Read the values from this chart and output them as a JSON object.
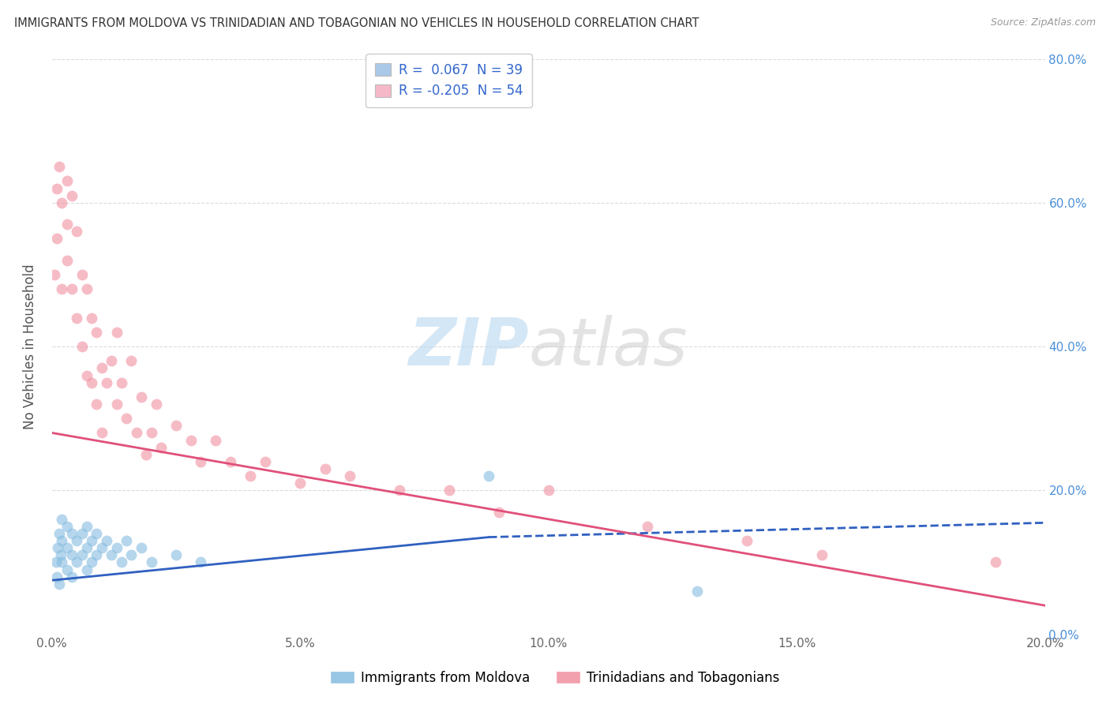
{
  "title": "IMMIGRANTS FROM MOLDOVA VS TRINIDADIAN AND TOBAGONIAN NO VEHICLES IN HOUSEHOLD CORRELATION CHART",
  "source": "Source: ZipAtlas.com",
  "ylabel": "No Vehicles in Household",
  "xlim": [
    0.0,
    0.2
  ],
  "ylim": [
    0.0,
    0.8
  ],
  "xtick_vals": [
    0.0,
    0.05,
    0.1,
    0.15,
    0.2
  ],
  "xtick_labels": [
    "0.0%",
    "5.0%",
    "10.0%",
    "15.0%",
    "20.0%"
  ],
  "ytick_vals": [
    0.0,
    0.2,
    0.4,
    0.6,
    0.8
  ],
  "ytick_labels_right": [
    "0.0%",
    "20.0%",
    "40.0%",
    "60.0%",
    "80.0%"
  ],
  "watermark_text": "ZIP",
  "watermark_text2": "atlas",
  "legend_entries": [
    {
      "label": "R =  0.067  N = 39",
      "color": "#aac8e8"
    },
    {
      "label": "R = -0.205  N = 54",
      "color": "#f5b8c8"
    }
  ],
  "scatter_moldova": {
    "x": [
      0.0008,
      0.001,
      0.0012,
      0.0015,
      0.0015,
      0.0018,
      0.002,
      0.002,
      0.002,
      0.003,
      0.003,
      0.003,
      0.004,
      0.004,
      0.004,
      0.005,
      0.005,
      0.006,
      0.006,
      0.007,
      0.007,
      0.007,
      0.008,
      0.008,
      0.009,
      0.009,
      0.01,
      0.011,
      0.012,
      0.013,
      0.014,
      0.015,
      0.016,
      0.018,
      0.02,
      0.025,
      0.03,
      0.088,
      0.13
    ],
    "y": [
      0.1,
      0.08,
      0.12,
      0.14,
      0.07,
      0.11,
      0.16,
      0.13,
      0.1,
      0.15,
      0.12,
      0.09,
      0.14,
      0.11,
      0.08,
      0.13,
      0.1,
      0.14,
      0.11,
      0.15,
      0.12,
      0.09,
      0.13,
      0.1,
      0.14,
      0.11,
      0.12,
      0.13,
      0.11,
      0.12,
      0.1,
      0.13,
      0.11,
      0.12,
      0.1,
      0.11,
      0.1,
      0.22,
      0.06
    ],
    "color": "#85bce0",
    "alpha": 0.6,
    "size": 100
  },
  "scatter_trinidad": {
    "x": [
      0.0005,
      0.001,
      0.001,
      0.0015,
      0.002,
      0.002,
      0.003,
      0.003,
      0.003,
      0.004,
      0.004,
      0.005,
      0.005,
      0.006,
      0.006,
      0.007,
      0.007,
      0.008,
      0.008,
      0.009,
      0.009,
      0.01,
      0.01,
      0.011,
      0.012,
      0.013,
      0.013,
      0.014,
      0.015,
      0.016,
      0.017,
      0.018,
      0.019,
      0.02,
      0.021,
      0.022,
      0.025,
      0.028,
      0.03,
      0.033,
      0.036,
      0.04,
      0.043,
      0.05,
      0.055,
      0.06,
      0.07,
      0.08,
      0.09,
      0.1,
      0.12,
      0.14,
      0.155,
      0.19
    ],
    "y": [
      0.5,
      0.62,
      0.55,
      0.65,
      0.6,
      0.48,
      0.63,
      0.57,
      0.52,
      0.61,
      0.48,
      0.56,
      0.44,
      0.5,
      0.4,
      0.48,
      0.36,
      0.44,
      0.35,
      0.42,
      0.32,
      0.37,
      0.28,
      0.35,
      0.38,
      0.32,
      0.42,
      0.35,
      0.3,
      0.38,
      0.28,
      0.33,
      0.25,
      0.28,
      0.32,
      0.26,
      0.29,
      0.27,
      0.24,
      0.27,
      0.24,
      0.22,
      0.24,
      0.21,
      0.23,
      0.22,
      0.2,
      0.2,
      0.17,
      0.2,
      0.15,
      0.13,
      0.11,
      0.1
    ],
    "color": "#f090a0",
    "alpha": 0.6,
    "size": 100
  },
  "trendline_moldova_solid": {
    "x": [
      0.0,
      0.088
    ],
    "y": [
      0.075,
      0.135
    ],
    "color": "#3060c0",
    "linewidth": 2.0
  },
  "trendline_moldova_dashed": {
    "x": [
      0.088,
      0.2
    ],
    "y": [
      0.135,
      0.155
    ],
    "color": "#3060c0",
    "linewidth": 2.0
  },
  "trendline_trinidad": {
    "x": [
      0.0,
      0.2
    ],
    "y": [
      0.28,
      0.04
    ],
    "color": "#e0507a",
    "linewidth": 2.0
  },
  "grid_color": "#cccccc",
  "grid_alpha": 0.7,
  "background_color": "#ffffff",
  "legend_labels_bottom": [
    "Immigrants from Moldova",
    "Trinidadians and Tobagonians"
  ],
  "legend_colors_bottom": [
    "#85bce0",
    "#f090a0"
  ]
}
